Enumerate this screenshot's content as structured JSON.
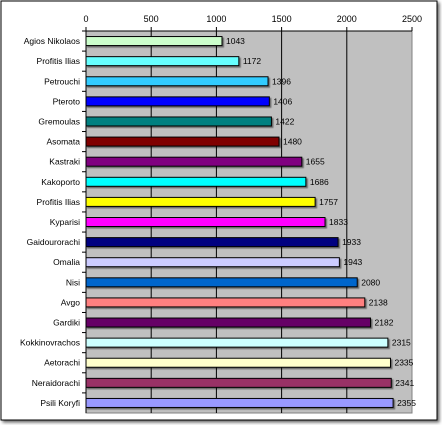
{
  "chart_data": {
    "type": "bar",
    "orientation": "horizontal",
    "title": "",
    "xlabel": "",
    "ylabel": "",
    "xlim": [
      0,
      2500
    ],
    "x_ticks": [
      0,
      500,
      1000,
      1500,
      2000,
      2500
    ],
    "x_axis_position": "top",
    "grid": true,
    "legend": "none",
    "plot_background": "#c0c0c0",
    "categories": [
      "Agios Nikolaos",
      "Profitis Ilias",
      "Petrouchi",
      "Pteroto",
      "Gremoulas",
      "Asomata",
      "Kastraki",
      "Kakoporto",
      "Profitis Ilias",
      "Kyparisi",
      "Gaidourorachi",
      "Omalia",
      "Nisi",
      "Avgo",
      "Gardiki",
      "Kokkinovrachos",
      "Aetorachi",
      "Neraidorachi",
      "Psili Koryfi"
    ],
    "values": [
      1043,
      1172,
      1396,
      1406,
      1422,
      1480,
      1655,
      1686,
      1757,
      1833,
      1933,
      1943,
      2080,
      2138,
      2182,
      2315,
      2335,
      2341,
      2355
    ],
    "value_labels": [
      "1043",
      "1172",
      "1396",
      "1406",
      "1422",
      "1480",
      "1655",
      "1686",
      "1757",
      "1833",
      "1933",
      "1943",
      "2080",
      "2138",
      "2182",
      "2315",
      "2335",
      "2341",
      "2355"
    ],
    "colors": [
      "#ccffcc",
      "#66ffff",
      "#33ccff",
      "#0000ff",
      "#008080",
      "#800000",
      "#800080",
      "#00ffff",
      "#ffff00",
      "#ff00ff",
      "#000080",
      "#ccccff",
      "#0066cc",
      "#ff8080",
      "#660066",
      "#ccffff",
      "#ffffcc",
      "#993366",
      "#9999ff"
    ]
  }
}
